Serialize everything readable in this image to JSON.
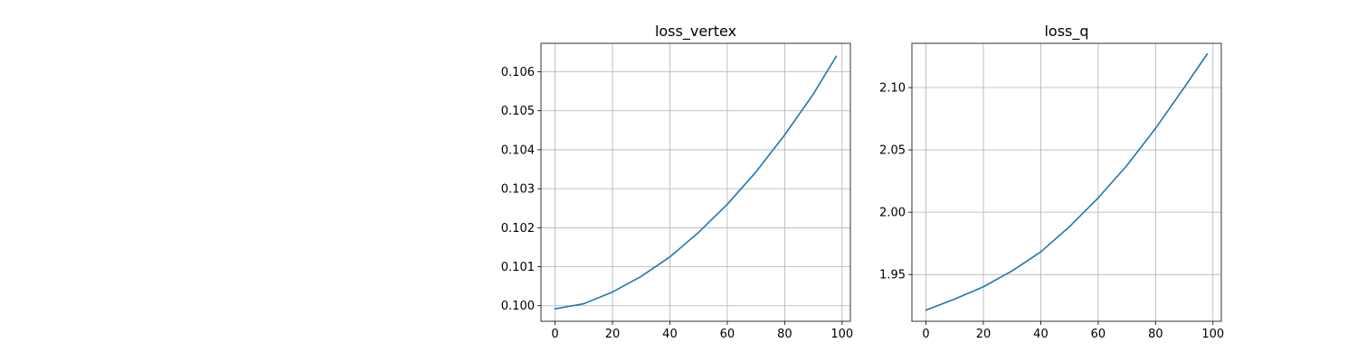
{
  "chart_data": [
    {
      "type": "line",
      "title": "loss_vertex",
      "xlabel": "",
      "ylabel": "",
      "grid": true,
      "xlim": [
        -4.9,
        102.9
      ],
      "ylim": [
        0.0996,
        0.10673
      ],
      "xticks": [
        0,
        20,
        40,
        60,
        80,
        100
      ],
      "xtick_labels": [
        "0",
        "20",
        "40",
        "60",
        "80",
        "100"
      ],
      "yticks": [
        0.1,
        0.101,
        0.102,
        0.103,
        0.104,
        0.105,
        0.106
      ],
      "ytick_labels": [
        "0.100",
        "0.101",
        "0.102",
        "0.103",
        "0.104",
        "0.105",
        "0.106"
      ],
      "series": [
        {
          "color": "#1f77b4",
          "x": [
            0,
            10,
            20,
            30,
            40,
            50,
            60,
            70,
            80,
            90,
            98
          ],
          "y": [
            0.09992,
            0.10005,
            0.10035,
            0.10075,
            0.10125,
            0.10188,
            0.1026,
            0.10343,
            0.10438,
            0.10543,
            0.1064
          ]
        }
      ]
    },
    {
      "type": "line",
      "title": "loss_q",
      "xlabel": "",
      "ylabel": "",
      "grid": true,
      "xlim": [
        -4.9,
        102.9
      ],
      "ylim": [
        1.9125,
        2.1355
      ],
      "xticks": [
        0,
        20,
        40,
        60,
        80,
        100
      ],
      "xtick_labels": [
        "0",
        "20",
        "40",
        "60",
        "80",
        "100"
      ],
      "yticks": [
        1.95,
        2.0,
        2.05,
        2.1
      ],
      "ytick_labels": [
        "1.95",
        "2.00",
        "2.05",
        "2.10"
      ],
      "series": [
        {
          "color": "#1f77b4",
          "x": [
            0,
            10,
            20,
            30,
            40,
            50,
            60,
            70,
            80,
            90,
            98
          ],
          "y": [
            1.9215,
            1.9303,
            1.9402,
            1.9529,
            1.9682,
            1.9884,
            2.0115,
            2.0375,
            2.0673,
            2.1001,
            2.127
          ]
        }
      ]
    }
  ]
}
